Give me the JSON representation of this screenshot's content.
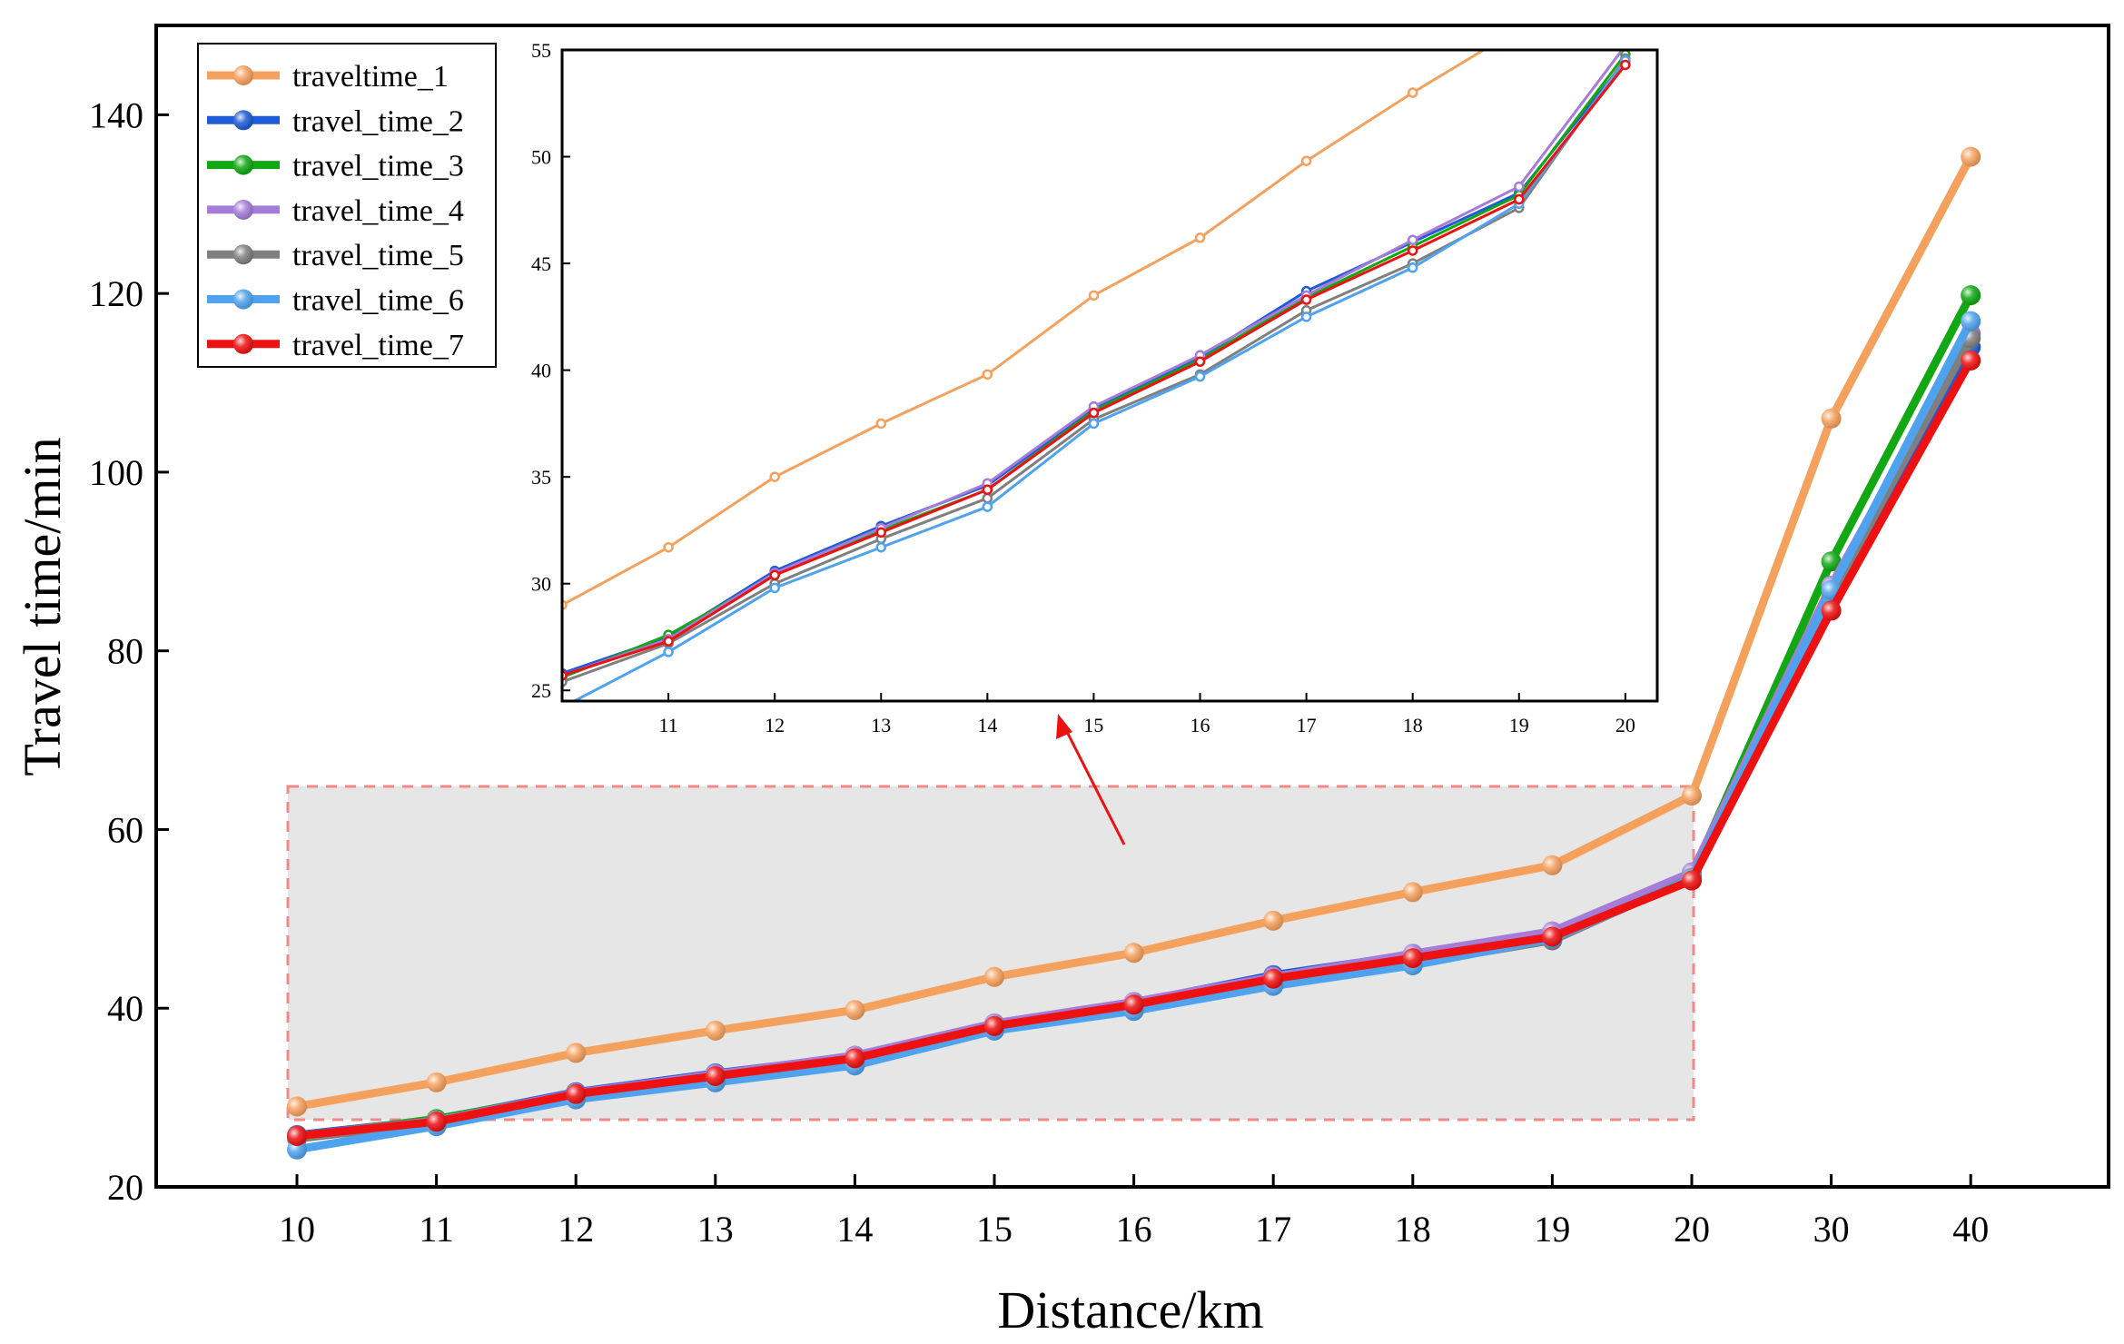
{
  "chart_data": [
    {
      "type": "line",
      "name": "main",
      "title": "",
      "xlabel": "Distance/km",
      "ylabel": "Travel time/min",
      "categories": [
        "10",
        "11",
        "12",
        "13",
        "14",
        "15",
        "16",
        "17",
        "18",
        "19",
        "20",
        "30",
        "40"
      ],
      "ylim": [
        20,
        150
      ],
      "yticks": [
        20,
        40,
        60,
        80,
        100,
        120,
        140
      ],
      "legend_position": "top-left",
      "series": [
        {
          "name": "traveltime_1",
          "color": "#f5a15e",
          "values": [
            29.0,
            31.7,
            35.0,
            37.5,
            39.8,
            43.5,
            46.2,
            49.8,
            53.0,
            56.0,
            63.8,
            106.0,
            135.3
          ]
        },
        {
          "name": "travel_time_2",
          "color": "#1f5bd6",
          "values": [
            25.8,
            27.5,
            30.6,
            32.7,
            34.6,
            38.2,
            40.6,
            43.7,
            46.0,
            48.3,
            54.5,
            86.0,
            114.0
          ]
        },
        {
          "name": "travel_time_3",
          "color": "#11a814",
          "values": [
            25.6,
            27.6,
            30.4,
            32.5,
            34.4,
            38.1,
            40.5,
            43.4,
            45.8,
            48.2,
            54.8,
            90.0,
            119.8
          ]
        },
        {
          "name": "travel_time_4",
          "color": "#a67cd9",
          "values": [
            25.7,
            27.4,
            30.5,
            32.6,
            34.7,
            38.3,
            40.7,
            43.5,
            46.1,
            48.6,
            55.2,
            87.3,
            115.5
          ]
        },
        {
          "name": "travel_time_5",
          "color": "#7f7f7f",
          "values": [
            25.4,
            27.2,
            30.0,
            32.1,
            34.0,
            37.7,
            39.8,
            42.8,
            45.0,
            47.6,
            54.6,
            86.2,
            115.0
          ]
        },
        {
          "name": "travel_time_6",
          "color": "#4fa3ee",
          "values": [
            24.2,
            26.8,
            29.8,
            31.7,
            33.6,
            37.5,
            39.7,
            42.5,
            44.8,
            47.8,
            54.5,
            86.8,
            116.9
          ]
        },
        {
          "name": "travel_time_7",
          "color": "#ee1111",
          "values": [
            25.7,
            27.3,
            30.4,
            32.4,
            34.4,
            38.0,
            40.4,
            43.3,
            45.6,
            48.0,
            54.3,
            84.5,
            112.5
          ]
        }
      ]
    },
    {
      "type": "line",
      "name": "inset",
      "title": "",
      "xlabel": "",
      "ylabel": "",
      "x": [
        10,
        11,
        12,
        13,
        14,
        15,
        16,
        17,
        18,
        19,
        20
      ],
      "xlim": [
        10,
        20.3
      ],
      "xticks": [
        "11",
        "12",
        "13",
        "14",
        "15",
        "16",
        "17",
        "18",
        "19",
        "20"
      ],
      "ylim": [
        24.5,
        55
      ],
      "yticks": [
        "25",
        "30",
        "35",
        "40",
        "45",
        "50",
        "55"
      ],
      "series_from": "main",
      "annotation": "inset zooms into the shaded region 10–20 km (red dashed box), indicated by red arrow"
    }
  ]
}
